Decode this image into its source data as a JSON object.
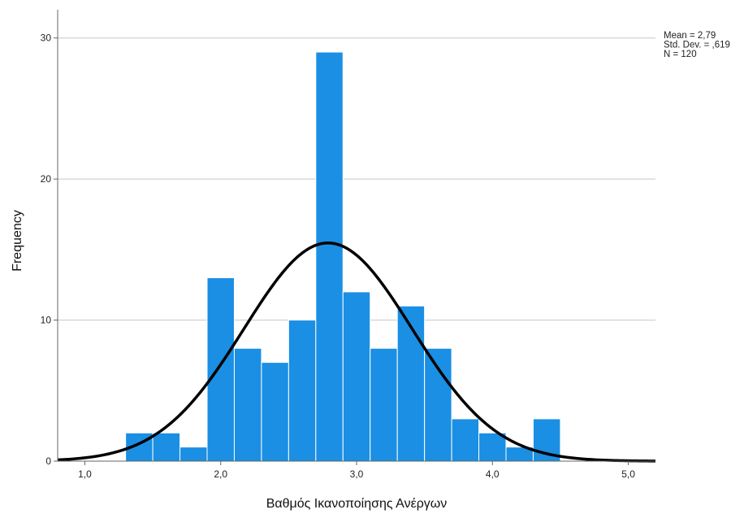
{
  "chart_data": {
    "type": "bar",
    "subtype": "histogram",
    "xlabel": "Βαθμός Ικανοποίησης Ανέργων",
    "ylabel": "Frequency",
    "xlim": [
      0.8,
      5.2
    ],
    "ylim": [
      0,
      32
    ],
    "x_ticks": [
      1.0,
      2.0,
      3.0,
      4.0,
      5.0
    ],
    "x_tick_labels": [
      "1,0",
      "2,0",
      "3,0",
      "4,0",
      "5,0"
    ],
    "y_ticks": [
      0,
      10,
      20,
      30
    ],
    "y_tick_labels": [
      "0",
      "10",
      "20",
      "30"
    ],
    "grid": "horizontal",
    "bins": [
      {
        "x0": 1.3,
        "x1": 1.5,
        "value": 2
      },
      {
        "x0": 1.5,
        "x1": 1.7,
        "value": 2
      },
      {
        "x0": 1.7,
        "x1": 1.9,
        "value": 1
      },
      {
        "x0": 1.9,
        "x1": 2.1,
        "value": 13
      },
      {
        "x0": 2.1,
        "x1": 2.3,
        "value": 8
      },
      {
        "x0": 2.3,
        "x1": 2.5,
        "value": 7
      },
      {
        "x0": 2.5,
        "x1": 2.7,
        "value": 10
      },
      {
        "x0": 2.7,
        "x1": 2.9,
        "value": 29
      },
      {
        "x0": 2.9,
        "x1": 3.1,
        "value": 12
      },
      {
        "x0": 3.1,
        "x1": 3.3,
        "value": 8
      },
      {
        "x0": 3.3,
        "x1": 3.5,
        "value": 11
      },
      {
        "x0": 3.5,
        "x1": 3.7,
        "value": 8
      },
      {
        "x0": 3.7,
        "x1": 3.9,
        "value": 3
      },
      {
        "x0": 3.9,
        "x1": 4.1,
        "value": 2
      },
      {
        "x0": 4.1,
        "x1": 4.3,
        "value": 1
      },
      {
        "x0": 4.3,
        "x1": 4.5,
        "value": 3
      }
    ],
    "normal_curve": {
      "mean": 2.79,
      "std": 0.619,
      "n": 120,
      "bin_width": 0.2
    },
    "bar_color": "#1a8fe3",
    "curve_color": "#000000",
    "stats_box": {
      "position": "top-right",
      "lines": [
        "Mean = 2,79",
        "Std. Dev. = ,619",
        "N = 120"
      ]
    }
  }
}
